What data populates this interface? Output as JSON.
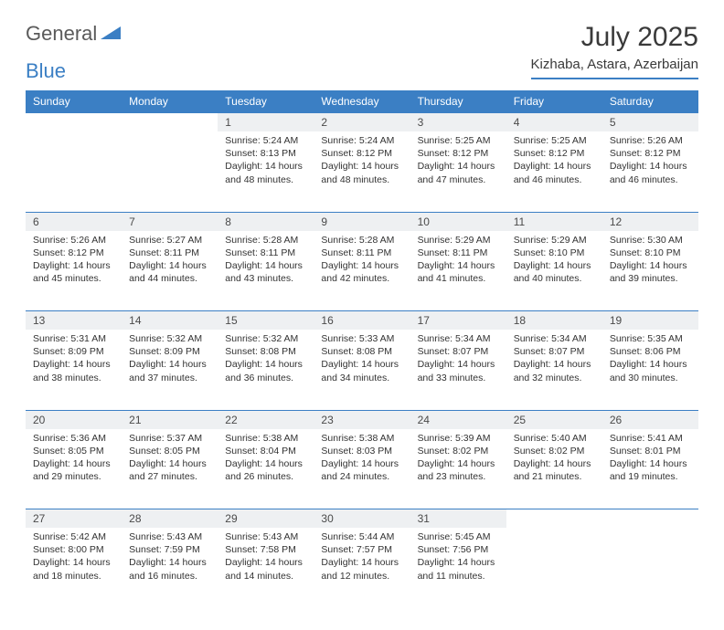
{
  "brand": {
    "part1": "General",
    "part2": "Blue"
  },
  "title": "July 2025",
  "location": "Kizhaba, Astara, Azerbaijan",
  "colors": {
    "header_bg": "#3b7fc4",
    "header_text": "#ffffff",
    "daynum_bg": "#eef0f2",
    "divider": "#3b7fc4",
    "body_text": "#333333"
  },
  "weekdays": [
    "Sunday",
    "Monday",
    "Tuesday",
    "Wednesday",
    "Thursday",
    "Friday",
    "Saturday"
  ],
  "weeks": [
    [
      null,
      null,
      {
        "n": "1",
        "sr": "Sunrise: 5:24 AM",
        "ss": "Sunset: 8:13 PM",
        "d1": "Daylight: 14 hours",
        "d2": "and 48 minutes."
      },
      {
        "n": "2",
        "sr": "Sunrise: 5:24 AM",
        "ss": "Sunset: 8:12 PM",
        "d1": "Daylight: 14 hours",
        "d2": "and 48 minutes."
      },
      {
        "n": "3",
        "sr": "Sunrise: 5:25 AM",
        "ss": "Sunset: 8:12 PM",
        "d1": "Daylight: 14 hours",
        "d2": "and 47 minutes."
      },
      {
        "n": "4",
        "sr": "Sunrise: 5:25 AM",
        "ss": "Sunset: 8:12 PM",
        "d1": "Daylight: 14 hours",
        "d2": "and 46 minutes."
      },
      {
        "n": "5",
        "sr": "Sunrise: 5:26 AM",
        "ss": "Sunset: 8:12 PM",
        "d1": "Daylight: 14 hours",
        "d2": "and 46 minutes."
      }
    ],
    [
      {
        "n": "6",
        "sr": "Sunrise: 5:26 AM",
        "ss": "Sunset: 8:12 PM",
        "d1": "Daylight: 14 hours",
        "d2": "and 45 minutes."
      },
      {
        "n": "7",
        "sr": "Sunrise: 5:27 AM",
        "ss": "Sunset: 8:11 PM",
        "d1": "Daylight: 14 hours",
        "d2": "and 44 minutes."
      },
      {
        "n": "8",
        "sr": "Sunrise: 5:28 AM",
        "ss": "Sunset: 8:11 PM",
        "d1": "Daylight: 14 hours",
        "d2": "and 43 minutes."
      },
      {
        "n": "9",
        "sr": "Sunrise: 5:28 AM",
        "ss": "Sunset: 8:11 PM",
        "d1": "Daylight: 14 hours",
        "d2": "and 42 minutes."
      },
      {
        "n": "10",
        "sr": "Sunrise: 5:29 AM",
        "ss": "Sunset: 8:11 PM",
        "d1": "Daylight: 14 hours",
        "d2": "and 41 minutes."
      },
      {
        "n": "11",
        "sr": "Sunrise: 5:29 AM",
        "ss": "Sunset: 8:10 PM",
        "d1": "Daylight: 14 hours",
        "d2": "and 40 minutes."
      },
      {
        "n": "12",
        "sr": "Sunrise: 5:30 AM",
        "ss": "Sunset: 8:10 PM",
        "d1": "Daylight: 14 hours",
        "d2": "and 39 minutes."
      }
    ],
    [
      {
        "n": "13",
        "sr": "Sunrise: 5:31 AM",
        "ss": "Sunset: 8:09 PM",
        "d1": "Daylight: 14 hours",
        "d2": "and 38 minutes."
      },
      {
        "n": "14",
        "sr": "Sunrise: 5:32 AM",
        "ss": "Sunset: 8:09 PM",
        "d1": "Daylight: 14 hours",
        "d2": "and 37 minutes."
      },
      {
        "n": "15",
        "sr": "Sunrise: 5:32 AM",
        "ss": "Sunset: 8:08 PM",
        "d1": "Daylight: 14 hours",
        "d2": "and 36 minutes."
      },
      {
        "n": "16",
        "sr": "Sunrise: 5:33 AM",
        "ss": "Sunset: 8:08 PM",
        "d1": "Daylight: 14 hours",
        "d2": "and 34 minutes."
      },
      {
        "n": "17",
        "sr": "Sunrise: 5:34 AM",
        "ss": "Sunset: 8:07 PM",
        "d1": "Daylight: 14 hours",
        "d2": "and 33 minutes."
      },
      {
        "n": "18",
        "sr": "Sunrise: 5:34 AM",
        "ss": "Sunset: 8:07 PM",
        "d1": "Daylight: 14 hours",
        "d2": "and 32 minutes."
      },
      {
        "n": "19",
        "sr": "Sunrise: 5:35 AM",
        "ss": "Sunset: 8:06 PM",
        "d1": "Daylight: 14 hours",
        "d2": "and 30 minutes."
      }
    ],
    [
      {
        "n": "20",
        "sr": "Sunrise: 5:36 AM",
        "ss": "Sunset: 8:05 PM",
        "d1": "Daylight: 14 hours",
        "d2": "and 29 minutes."
      },
      {
        "n": "21",
        "sr": "Sunrise: 5:37 AM",
        "ss": "Sunset: 8:05 PM",
        "d1": "Daylight: 14 hours",
        "d2": "and 27 minutes."
      },
      {
        "n": "22",
        "sr": "Sunrise: 5:38 AM",
        "ss": "Sunset: 8:04 PM",
        "d1": "Daylight: 14 hours",
        "d2": "and 26 minutes."
      },
      {
        "n": "23",
        "sr": "Sunrise: 5:38 AM",
        "ss": "Sunset: 8:03 PM",
        "d1": "Daylight: 14 hours",
        "d2": "and 24 minutes."
      },
      {
        "n": "24",
        "sr": "Sunrise: 5:39 AM",
        "ss": "Sunset: 8:02 PM",
        "d1": "Daylight: 14 hours",
        "d2": "and 23 minutes."
      },
      {
        "n": "25",
        "sr": "Sunrise: 5:40 AM",
        "ss": "Sunset: 8:02 PM",
        "d1": "Daylight: 14 hours",
        "d2": "and 21 minutes."
      },
      {
        "n": "26",
        "sr": "Sunrise: 5:41 AM",
        "ss": "Sunset: 8:01 PM",
        "d1": "Daylight: 14 hours",
        "d2": "and 19 minutes."
      }
    ],
    [
      {
        "n": "27",
        "sr": "Sunrise: 5:42 AM",
        "ss": "Sunset: 8:00 PM",
        "d1": "Daylight: 14 hours",
        "d2": "and 18 minutes."
      },
      {
        "n": "28",
        "sr": "Sunrise: 5:43 AM",
        "ss": "Sunset: 7:59 PM",
        "d1": "Daylight: 14 hours",
        "d2": "and 16 minutes."
      },
      {
        "n": "29",
        "sr": "Sunrise: 5:43 AM",
        "ss": "Sunset: 7:58 PM",
        "d1": "Daylight: 14 hours",
        "d2": "and 14 minutes."
      },
      {
        "n": "30",
        "sr": "Sunrise: 5:44 AM",
        "ss": "Sunset: 7:57 PM",
        "d1": "Daylight: 14 hours",
        "d2": "and 12 minutes."
      },
      {
        "n": "31",
        "sr": "Sunrise: 5:45 AM",
        "ss": "Sunset: 7:56 PM",
        "d1": "Daylight: 14 hours",
        "d2": "and 11 minutes."
      },
      null,
      null
    ]
  ]
}
